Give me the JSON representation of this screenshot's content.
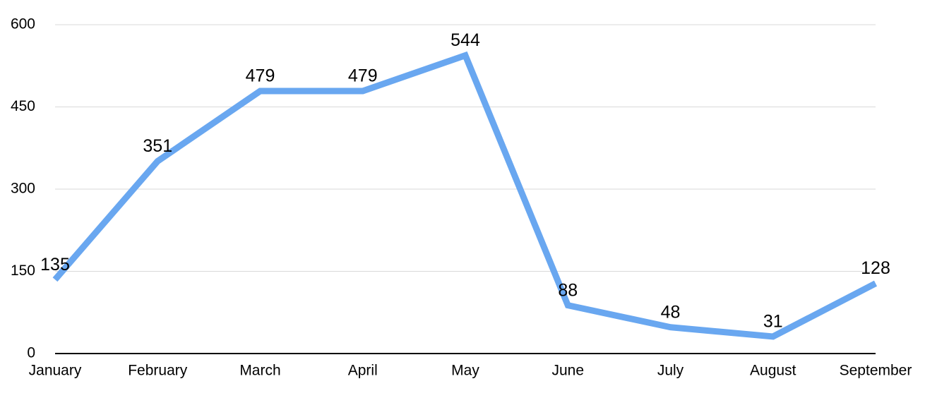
{
  "chart_data": {
    "type": "line",
    "categories": [
      "January",
      "February",
      "March",
      "April",
      "May",
      "June",
      "July",
      "August",
      "September"
    ],
    "values": [
      135,
      351,
      479,
      479,
      544,
      88,
      48,
      31,
      128
    ],
    "color": "#69a7f0",
    "ylim": [
      0,
      600
    ],
    "yticks": [
      0,
      150,
      300,
      450,
      600
    ],
    "grid": true
  }
}
